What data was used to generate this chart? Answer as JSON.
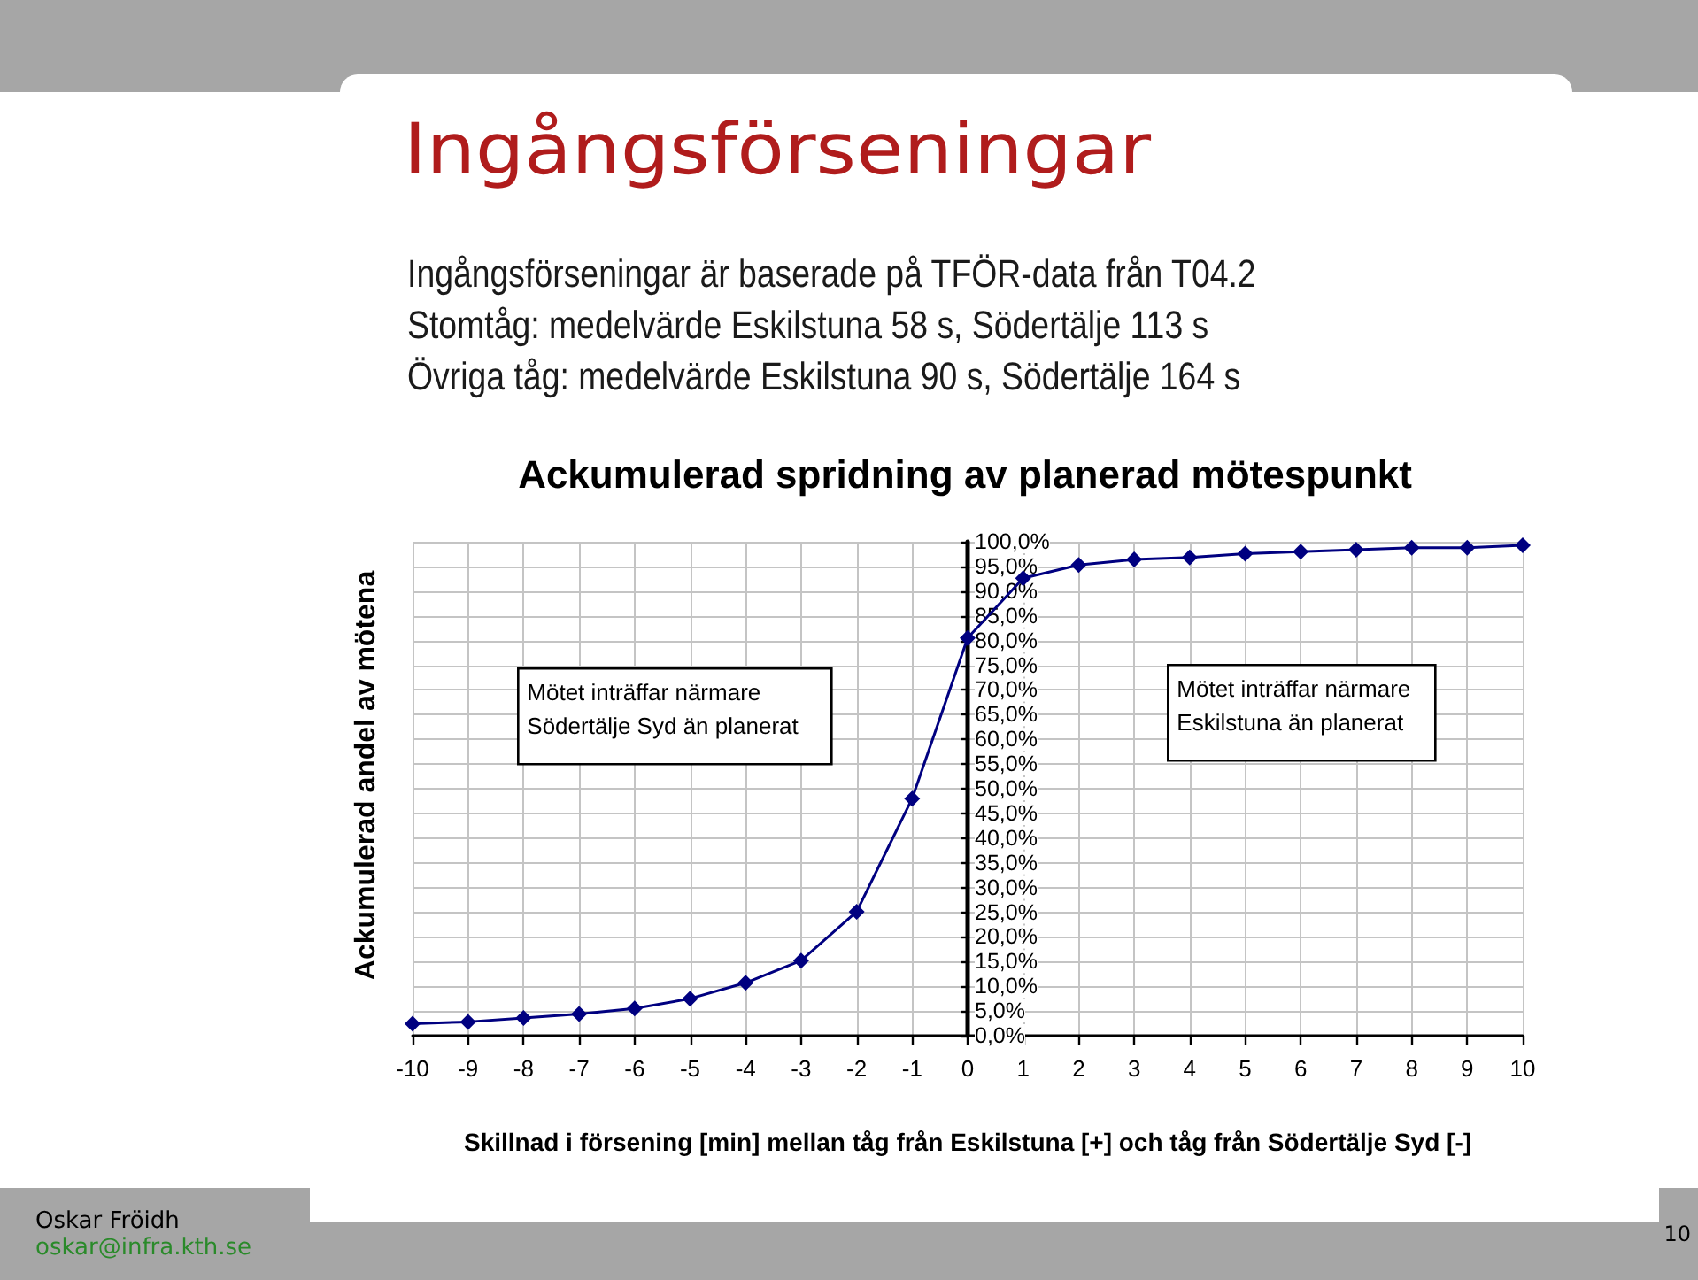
{
  "chart_data": {
    "type": "line",
    "title": "Ingångsförseningar",
    "subtitle": "Ingångsförseningar är baserade på TFÖR-data från T04.2\nStomtåg: medelvärde Eskilstuna 58 s, Södertälje 113 s\nÖvriga tåg: medelvärde Eskilstuna 90 s, Södertälje 164 s",
    "xlabel": "Skillnad i försening [min] mellan tåg från Eskilstuna [+] och tåg från Södertälje Syd [-]",
    "ylabel": "Ackumulerad andel av mötena",
    "annotations": [
      "Ackumulerad spridning av planerad mötespunkt",
      "Mötet inträffar närmare\nSödertälje Syd än planerat",
      "Mötet inträffar närmare\nEskilstuna än planerat",
      "Oskar Fröidh",
      "oskar@infra.kth.se",
      "10"
    ],
    "x": [
      -10,
      -9,
      -8,
      -7,
      -6,
      -5,
      -4,
      -3,
      -2,
      -1,
      0,
      1,
      2,
      3,
      4,
      5,
      6,
      7,
      8,
      9,
      10
    ],
    "values": [
      2.4,
      2.8,
      3.6,
      4.4,
      5.5,
      7.5,
      10.7,
      15.2,
      25.1,
      48.0,
      80.5,
      92.6,
      95.3,
      96.4,
      96.8,
      97.6,
      98.0,
      98.4,
      98.8,
      98.8,
      99.3
    ],
    "color": "#000080",
    "xlim": [
      -10,
      10
    ],
    "xticks": [
      -10,
      -9,
      -8,
      -7,
      -6,
      -5,
      -4,
      -3,
      -2,
      -1,
      0,
      1,
      2,
      3,
      4,
      5,
      6,
      7,
      8,
      9,
      10
    ],
    "ylim": [
      0,
      100
    ],
    "yticks": [
      {
        "value": 0,
        "label": "0,0%"
      },
      {
        "value": 5,
        "label": "5,0%"
      },
      {
        "value": 10,
        "label": "10,0%"
      },
      {
        "value": 15,
        "label": "15,0%"
      },
      {
        "value": 20,
        "label": "20,0%"
      },
      {
        "value": 25,
        "label": "25,0%"
      },
      {
        "value": 30,
        "label": "30,0%"
      },
      {
        "value": 35,
        "label": "35,0%"
      },
      {
        "value": 40,
        "label": "40,0%"
      },
      {
        "value": 45,
        "label": "45,0%"
      },
      {
        "value": 50,
        "label": "50,0%"
      },
      {
        "value": 55,
        "label": "55,0%"
      },
      {
        "value": 60,
        "label": "60,0%"
      },
      {
        "value": 65,
        "label": "65,0%"
      },
      {
        "value": 70,
        "label": "70,0%"
      },
      {
        "value": 75,
        "label": "75,0%"
      },
      {
        "value": 80,
        "label": "80,0%"
      },
      {
        "value": 85,
        "label": "85,0%"
      },
      {
        "value": 90,
        "label": "90,0%"
      },
      {
        "value": 95,
        "label": "95,0%"
      },
      {
        "value": 100,
        "label": "100,0%"
      }
    ],
    "grid": true,
    "marker": "diamond",
    "line_style": "solid"
  }
}
